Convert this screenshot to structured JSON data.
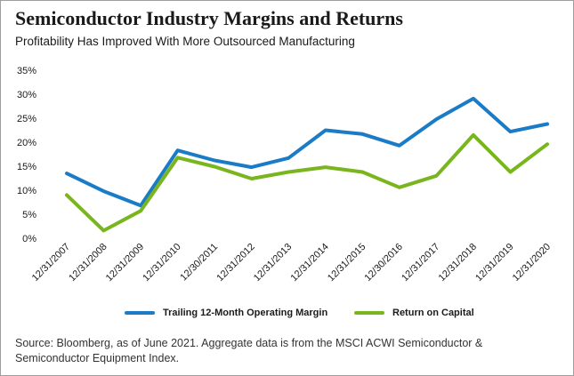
{
  "title": "Semiconductor Industry Margins and Returns",
  "subtitle": "Profitability Has Improved With More Outsourced Manufacturing",
  "source": "Source: Bloomberg, as of June 2021. Aggregate data is from the MSCI ACWI Semiconductor & Semiconductor Equipment Index.",
  "chart_data": {
    "type": "line",
    "title": "Semiconductor Industry Margins and Returns",
    "subtitle": "Profitability Has Improved With More Outsourced Manufacturing",
    "categories": [
      "12/31/2007",
      "12/31/2008",
      "12/31/2009",
      "12/31/2010",
      "12/30/2011",
      "12/31/2012",
      "12/31/2013",
      "12/31/2014",
      "12/31/2015",
      "12/30/2016",
      "12/31/2017",
      "12/31/2018",
      "12/31/2019",
      "12/31/2020"
    ],
    "yticks": [
      "0%",
      "5%",
      "10%",
      "15%",
      "20%",
      "25%",
      "30%",
      "35%"
    ],
    "ylim": [
      0,
      35
    ],
    "grid": false,
    "legend_position": "bottom",
    "series": [
      {
        "name": "Trailing 12-Month Operating Margin",
        "color": "#1a7bc6",
        "values": [
          13.5,
          9.8,
          6.8,
          18.3,
          16.2,
          14.8,
          16.7,
          22.5,
          21.7,
          19.3,
          24.8,
          29.1,
          22.2,
          23.8
        ]
      },
      {
        "name": "Return on Capital",
        "color": "#79b51d",
        "values": [
          9.0,
          1.6,
          5.7,
          16.8,
          14.9,
          12.4,
          13.8,
          14.8,
          13.8,
          10.6,
          13.0,
          21.5,
          13.8,
          19.6
        ]
      }
    ]
  }
}
